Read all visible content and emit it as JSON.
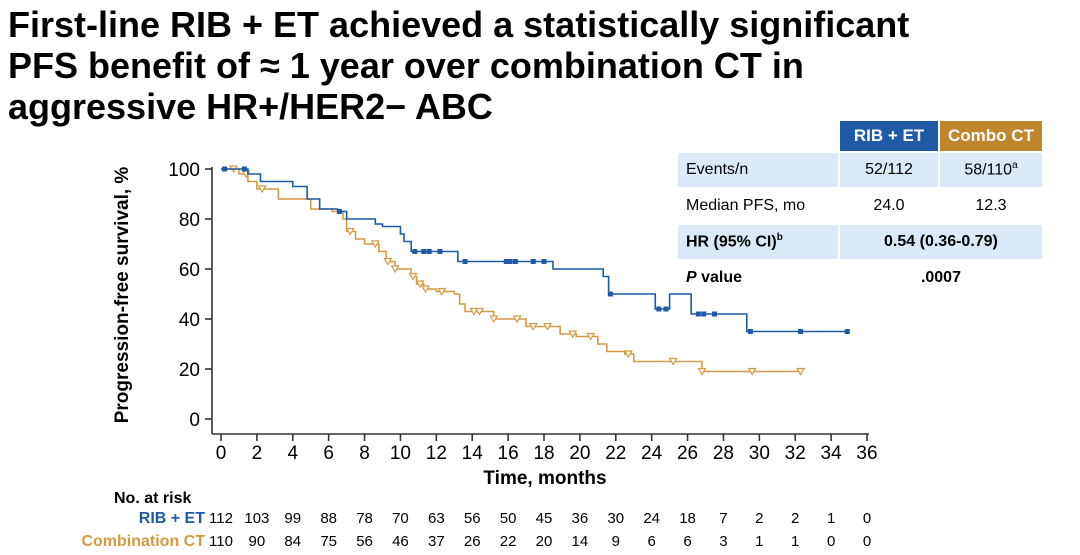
{
  "title": {
    "line1": "First-line RIB + ET achieved a statistically significant",
    "line2": "PFS benefit of ≈ 1 year over combination CT in",
    "line3": "aggressive HR+/HER2− ABC"
  },
  "table": {
    "header_rib": "RIB + ET",
    "header_combo": "Combo CT",
    "events_label": "Events/n",
    "events_rib": "52/112",
    "events_combo": "58/110",
    "events_combo_sup": "a",
    "median_label": "Median PFS, mo",
    "median_rib": "24.0",
    "median_combo": "12.3",
    "hr_label": "HR (95% CI)",
    "hr_label_sup": "b",
    "hr_value": "0.54 (0.36-0.79)",
    "p_label_italic": "P",
    "p_label_rest": " value",
    "p_value": ".0007"
  },
  "colors": {
    "rib": "#1f5aa6",
    "combo": "#d39a43",
    "combo_header": "#c1852f",
    "shade": "#dbe9f8"
  },
  "chart_data": {
    "type": "line",
    "subtype": "kaplan-meier",
    "xlabel": "Time, months",
    "ylabel": "Progression-free survival, %",
    "xlim": [
      0,
      36
    ],
    "ylim": [
      0,
      100
    ],
    "x_ticks": [
      0,
      2,
      4,
      6,
      8,
      10,
      12,
      14,
      16,
      18,
      20,
      22,
      24,
      26,
      28,
      30,
      32,
      34,
      36
    ],
    "y_ticks": [
      0,
      20,
      40,
      60,
      80,
      100
    ],
    "series": [
      {
        "name": "RIB + ET",
        "color": "#1f5aa6",
        "steps": [
          [
            0,
            100
          ],
          [
            1.5,
            98
          ],
          [
            2.2,
            95
          ],
          [
            4,
            93
          ],
          [
            4.8,
            88
          ],
          [
            5.5,
            84
          ],
          [
            6.5,
            83
          ],
          [
            7,
            80
          ],
          [
            8.6,
            78
          ],
          [
            9,
            77
          ],
          [
            10,
            74
          ],
          [
            10.2,
            71
          ],
          [
            10.6,
            67
          ],
          [
            13,
            67
          ],
          [
            13.2,
            63
          ],
          [
            17.6,
            63
          ],
          [
            18.5,
            60
          ],
          [
            21.3,
            57
          ],
          [
            21.6,
            50
          ],
          [
            25,
            50
          ],
          [
            24.2,
            44
          ],
          [
            24.2,
            44
          ],
          [
            26.2,
            42
          ],
          [
            29.1,
            42
          ],
          [
            29.3,
            35
          ],
          [
            35,
            35
          ]
        ],
        "censor": [
          0.2,
          1.3,
          6.6,
          10.8,
          11.3,
          11.6,
          12.2,
          13.6,
          15.9,
          16.1,
          16.4,
          17.4,
          18.0,
          21.7,
          24.4,
          24.8,
          26.6,
          26.9,
          27.5,
          29.5,
          32.3,
          34.9
        ]
      },
      {
        "name": "Combination CT",
        "color": "#d39a43",
        "steps": [
          [
            0,
            100
          ],
          [
            1,
            98
          ],
          [
            1.5,
            95
          ],
          [
            2,
            92
          ],
          [
            3.2,
            88
          ],
          [
            5,
            84
          ],
          [
            6.2,
            83
          ],
          [
            6.8,
            80
          ],
          [
            7,
            75
          ],
          [
            7.5,
            72
          ],
          [
            8,
            70
          ],
          [
            8.8,
            67
          ],
          [
            9.2,
            63
          ],
          [
            9.7,
            60
          ],
          [
            10.6,
            57
          ],
          [
            10.9,
            54
          ],
          [
            11.3,
            52
          ],
          [
            12,
            51
          ],
          [
            13,
            50
          ],
          [
            13.3,
            46
          ],
          [
            13.6,
            43
          ],
          [
            15.2,
            40
          ],
          [
            16.8,
            40
          ],
          [
            17,
            37
          ],
          [
            18.9,
            34
          ],
          [
            19.8,
            33
          ],
          [
            21,
            30
          ],
          [
            21.5,
            27
          ],
          [
            22.5,
            26
          ],
          [
            23,
            23
          ],
          [
            26.8,
            19
          ],
          [
            32.3,
            19
          ]
        ],
        "censor": [
          0.7,
          1.4,
          2.3,
          7.2,
          8.6,
          9.3,
          9.7,
          10.7,
          11.1,
          11.4,
          12.3,
          14.1,
          14.4,
          15.2,
          16.5,
          17.4,
          18.2,
          19.6,
          20.6,
          22.7,
          25.2,
          26.8,
          29.6,
          32.3
        ]
      }
    ],
    "at_risk": {
      "label": "No. at risk",
      "rows": [
        {
          "name": "RIB + ET",
          "values": [
            "112",
            "103",
            "99",
            "88",
            "78",
            "70",
            "63",
            "56",
            "50",
            "45",
            "36",
            "30",
            "24",
            "18",
            "7",
            "2",
            "2",
            "1",
            "0"
          ]
        },
        {
          "name": "Combination CT",
          "values": [
            "110",
            "90",
            "84",
            "75",
            "56",
            "46",
            "37",
            "26",
            "22",
            "20",
            "14",
            "9",
            "6",
            "6",
            "3",
            "1",
            "1",
            "0",
            "0"
          ]
        }
      ]
    }
  }
}
